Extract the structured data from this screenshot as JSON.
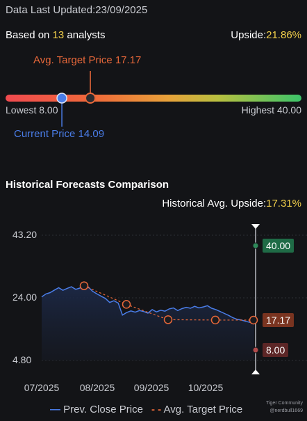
{
  "header": {
    "updated_label": "Data Last Updated:",
    "updated_date": "23/09/2025",
    "based_prefix": "Based on ",
    "analysts_count": "13",
    "based_suffix": " analysts",
    "upside_label": "Upside:",
    "upside_value": "21.86%"
  },
  "gauge": {
    "avg_target_label": "Avg. Target Price 17.17",
    "lowest_label": "Lowest 8.00",
    "highest_label": "Highest 40.00",
    "current_label": "Current Price 14.09",
    "low": 8.0,
    "high": 40.0,
    "current": 14.09,
    "avg_target": 17.17
  },
  "history": {
    "title": "Historical Forecasts Comparison",
    "avg_upside_label": "Historical Avg. Upside:",
    "avg_upside_value": "17.31%"
  },
  "chart_data": {
    "type": "line",
    "y_ticks": [
      "43.20",
      "24.00",
      "4.80"
    ],
    "x_ticks": [
      "07/2025",
      "08/2025",
      "09/2025",
      "10/2025"
    ],
    "ylim": [
      4.8,
      43.2
    ],
    "series": [
      {
        "name": "Prev. Close Price",
        "color": "#4a7de8",
        "values": [
          24.3,
          25.2,
          25.6,
          26.4,
          27.1,
          26.3,
          26.9,
          27.4,
          26.6,
          27.0,
          28.0,
          27.3,
          26.0,
          25.2,
          24.5,
          23.8,
          22.6,
          23.1,
          22.4,
          18.7,
          19.5,
          20.0,
          19.6,
          20.1,
          19.8,
          19.3,
          20.4,
          19.7,
          20.2,
          19.9,
          20.6,
          20.9,
          20.1,
          20.7,
          21.1,
          20.8,
          21.4,
          20.9,
          21.2,
          21.6,
          20.8,
          20.4,
          19.8,
          19.2,
          18.6,
          17.9,
          17.4,
          17.2,
          16.8,
          16.5,
          17.2
        ]
      },
      {
        "name": "Avg. Target Price",
        "color": "#e8683a",
        "x": [
          "08/2025 start",
          "08/2025 late",
          "09/2025",
          "10/2025",
          "latest"
        ],
        "values": [
          27.7,
          22.0,
          17.3,
          17.2,
          17.17
        ]
      }
    ],
    "markers": [
      {
        "label": "40.00",
        "value": 40.0,
        "kind": "highest",
        "color": "#1f6b46"
      },
      {
        "label": "17.17",
        "value": 17.17,
        "kind": "avg_target",
        "color": "#7a3420"
      },
      {
        "label": "8.00",
        "value": 8.0,
        "kind": "lowest",
        "color": "#5c2626"
      }
    ]
  },
  "legend": {
    "close_label": "Prev. Close Price",
    "target_label": "Avg. Target Price"
  },
  "watermark": {
    "brand": "Tiger Community",
    "user": "@nerdbull1669"
  }
}
